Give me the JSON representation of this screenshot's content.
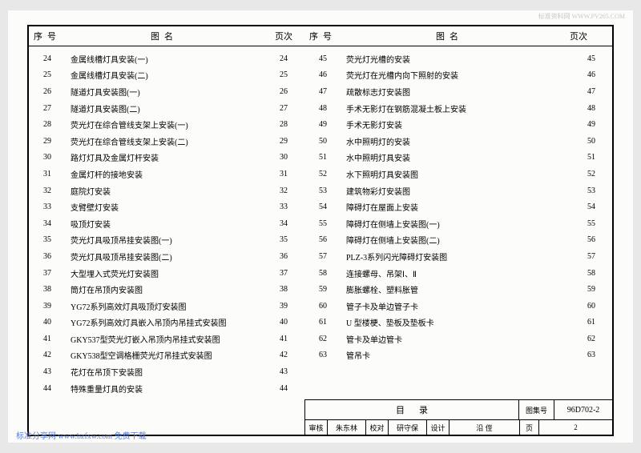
{
  "watermark_top": "标准资料网 WWW.PV265.COM",
  "watermark_bottom": "标准分享网 www.bzfxw.com 免费下载",
  "headers": {
    "seq": "序号",
    "name": "图名",
    "page": "页次"
  },
  "left_rows": [
    {
      "seq": "24",
      "name": "金属线槽灯具安装(一)",
      "page": "24"
    },
    {
      "seq": "25",
      "name": "金属线槽灯具安装(二)",
      "page": "25"
    },
    {
      "seq": "26",
      "name": "隧道灯具安装图(一)",
      "page": "26"
    },
    {
      "seq": "27",
      "name": "隧道灯具安装图(二)",
      "page": "27"
    },
    {
      "seq": "28",
      "name": "荧光灯在综合管线支架上安装(一)",
      "page": "28"
    },
    {
      "seq": "29",
      "name": "荧光灯在综合管线支架上安装(二)",
      "page": "29"
    },
    {
      "seq": "30",
      "name": "路灯灯具及金属灯杆安装",
      "page": "30"
    },
    {
      "seq": "31",
      "name": "金属灯杆的接地安装",
      "page": "31"
    },
    {
      "seq": "32",
      "name": "庭院灯安装",
      "page": "32"
    },
    {
      "seq": "33",
      "name": "支臂壁灯安装",
      "page": "33"
    },
    {
      "seq": "34",
      "name": "吸顶灯安装",
      "page": "34"
    },
    {
      "seq": "35",
      "name": "荧光灯具吸顶吊挂安装图(一)",
      "page": "35"
    },
    {
      "seq": "36",
      "name": "荧光灯具吸顶吊挂安装图(二)",
      "page": "36"
    },
    {
      "seq": "37",
      "name": "大型埋入式荧光灯安装图",
      "page": "37"
    },
    {
      "seq": "38",
      "name": "筒灯在吊顶内安装图",
      "page": "38"
    },
    {
      "seq": "39",
      "name": "YG72系列高效灯具吸顶灯安装图",
      "page": "39"
    },
    {
      "seq": "40",
      "name": "YG72系列高效灯具嵌入吊顶内吊挂式安装图",
      "page": "40"
    },
    {
      "seq": "41",
      "name": "GKY537型荧光灯嵌入吊顶内吊挂式安装图",
      "page": "41"
    },
    {
      "seq": "42",
      "name": "GKY538型空调格栅荧光灯吊挂式安装图",
      "page": "42"
    },
    {
      "seq": "43",
      "name": "花灯在吊顶下安装图",
      "page": "43"
    },
    {
      "seq": "44",
      "name": "特殊重量灯具的安装",
      "page": "44"
    }
  ],
  "right_rows": [
    {
      "seq": "45",
      "name": "荧光灯光槽的安装",
      "page": "45"
    },
    {
      "seq": "46",
      "name": "荧光灯在光槽内向下照射的安装",
      "page": "46"
    },
    {
      "seq": "47",
      "name": "疏散标志灯安装图",
      "page": "47"
    },
    {
      "seq": "48",
      "name": "手术无影灯在钢筋混凝土板上安装",
      "page": "48"
    },
    {
      "seq": "49",
      "name": "手术无影灯安装",
      "page": "49"
    },
    {
      "seq": "50",
      "name": "水中照明灯的安装",
      "page": "50"
    },
    {
      "seq": "51",
      "name": "水中照明灯具安装",
      "page": "51"
    },
    {
      "seq": "52",
      "name": "水下照明灯具安装图",
      "page": "52"
    },
    {
      "seq": "53",
      "name": "建筑物彩灯安装图",
      "page": "53"
    },
    {
      "seq": "54",
      "name": "障碍灯在屋面上安装",
      "page": "54"
    },
    {
      "seq": "55",
      "name": "障碍灯在侧墙上安装图(一)",
      "page": "55"
    },
    {
      "seq": "56",
      "name": "障碍灯在侧墙上安装图(二)",
      "page": "56"
    },
    {
      "seq": "57",
      "name": "PLZ-3系列闪光障碍灯安装图",
      "page": "57"
    },
    {
      "seq": "58",
      "name": "连接螺母、吊架Ⅰ、Ⅱ",
      "page": "58"
    },
    {
      "seq": "59",
      "name": "膨胀螺栓、塑料胀管",
      "page": "59"
    },
    {
      "seq": "60",
      "name": "管子卡及单边管子卡",
      "page": "60"
    },
    {
      "seq": "61",
      "name": "U 型楼梗、垫板及垫板卡",
      "page": "61"
    },
    {
      "seq": "62",
      "name": "管卡及单边管卡",
      "page": "62"
    },
    {
      "seq": "63",
      "name": "管吊卡",
      "page": "63"
    }
  ],
  "title_block": {
    "title": "目录",
    "set_label": "图集号",
    "set_no": "96D702-2",
    "bottom": {
      "b1": "审核",
      "b2": "朱东林",
      "b3": "校对",
      "b4": "研守保",
      "b5": "设计",
      "b6": "沿 侄",
      "b7": "页",
      "b8": "2"
    }
  }
}
